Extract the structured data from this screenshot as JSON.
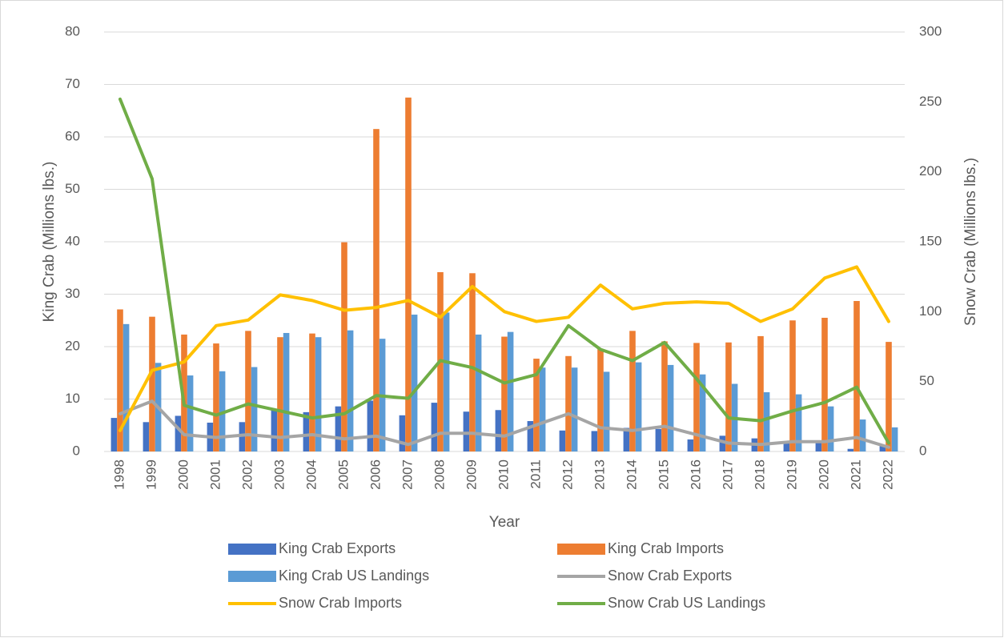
{
  "chart_data": {
    "type": "bar",
    "x_label": "Year",
    "y_label": "King Crab (Millions lbs.)",
    "y2_label": "Snow Crab (Millions lbs.)",
    "categories": [
      "1998",
      "1999",
      "2000",
      "2001",
      "2002",
      "2003",
      "2004",
      "2005",
      "2006",
      "2007",
      "2008",
      "2009",
      "2010",
      "2011",
      "2012",
      "2013",
      "2014",
      "2015",
      "2016",
      "2017",
      "2018",
      "2019",
      "2020",
      "2021",
      "2022"
    ],
    "ylim": [
      0,
      80
    ],
    "yticks": [
      0,
      10,
      20,
      30,
      40,
      50,
      60,
      70,
      80
    ],
    "y2lim": [
      0,
      300
    ],
    "y2ticks": [
      0,
      50,
      100,
      150,
      200,
      250,
      300
    ],
    "grid": true,
    "legend": "bottom",
    "series": [
      {
        "name": "King Crab Exports",
        "type": "bar",
        "color": "#4472c4",
        "values": [
          6.4,
          5.6,
          6.8,
          5.5,
          5.6,
          7.9,
          7.5,
          8.6,
          9.7,
          6.9,
          9.3,
          7.6,
          7.9,
          5.8,
          4.0,
          3.9,
          4.5,
          4.3,
          2.3,
          3.0,
          2.5,
          1.8,
          1.7,
          0.5,
          1.0
        ]
      },
      {
        "name": "King Crab Imports",
        "type": "bar",
        "color": "#ed7d31",
        "values": [
          27.1,
          25.7,
          22.3,
          20.6,
          23.0,
          21.8,
          22.5,
          39.9,
          61.5,
          67.5,
          34.2,
          34.0,
          21.9,
          17.7,
          18.2,
          19.5,
          23.0,
          21.0,
          20.7,
          20.8,
          22.0,
          25.0,
          25.5,
          28.7,
          20.9
        ]
      },
      {
        "name": "King Crab US Landings",
        "type": "bar",
        "color": "#5b9bd5",
        "values": [
          24.3,
          16.9,
          14.5,
          15.3,
          16.1,
          22.6,
          21.8,
          23.1,
          21.5,
          26.1,
          26.5,
          22.3,
          22.8,
          16.0,
          16.0,
          15.2,
          17.0,
          16.5,
          14.7,
          12.9,
          11.3,
          10.9,
          8.6,
          6.1,
          4.6
        ]
      },
      {
        "name": "Snow Crab Exports",
        "type": "line",
        "axis": "y2",
        "color": "#a5a5a5",
        "values": [
          27,
          36,
          12,
          10,
          12,
          10,
          12,
          9,
          11,
          5,
          13,
          13,
          11,
          19,
          27,
          17,
          15,
          18,
          12,
          6,
          5,
          7,
          7,
          10,
          3
        ]
      },
      {
        "name": "Snow Crab Imports",
        "type": "line",
        "axis": "y2",
        "color": "#ffc000",
        "values": [
          15,
          58,
          64,
          90,
          94,
          112,
          108,
          101,
          103,
          108,
          96,
          118,
          100,
          93,
          96,
          119,
          102,
          106,
          107,
          106,
          93,
          102,
          124,
          132,
          93
        ]
      },
      {
        "name": "Snow Crab US Landings",
        "type": "line",
        "axis": "y2",
        "color": "#70ad47",
        "values": [
          252,
          195,
          33,
          26,
          34,
          29,
          24,
          27,
          40,
          38,
          65,
          60,
          49,
          55,
          90,
          73,
          65,
          78,
          52,
          24,
          22,
          29,
          35,
          46,
          6
        ]
      }
    ]
  }
}
